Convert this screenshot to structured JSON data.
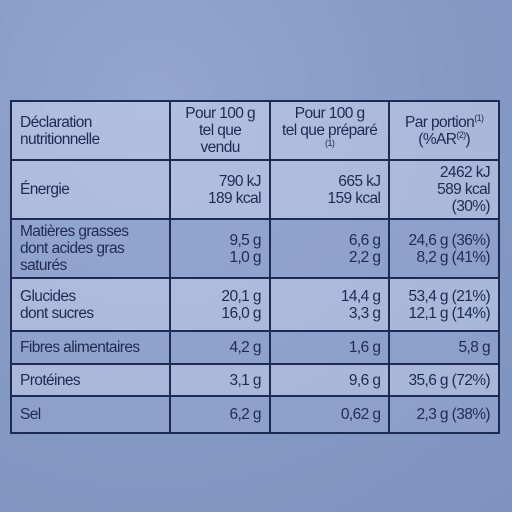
{
  "header": {
    "col1": [
      "Déclaration",
      "nutritionnelle"
    ],
    "col2": [
      "Pour 100 g",
      "tel que vendu"
    ],
    "col3": {
      "line1": "Pour 100 g",
      "line2": "tel que préparé",
      "note": "(1)"
    },
    "col4": {
      "line1": "Par portion",
      "note1": "(1)",
      "line2_open": "(%AR",
      "note2": "(2)",
      "line2_close": ")"
    }
  },
  "rows": [
    {
      "label": [
        "Énergie"
      ],
      "sold": [
        "790 kJ",
        "189 kcal"
      ],
      "prepared": [
        "665 kJ",
        "159 kcal"
      ],
      "portion": [
        "2462 kJ",
        "589 kcal (30%)"
      ]
    },
    {
      "label": [
        "Matières grasses",
        "dont acides gras saturés"
      ],
      "sold": [
        "9,5 g",
        "1,0 g"
      ],
      "prepared": [
        "6,6 g",
        "2,2 g"
      ],
      "portion": [
        "24,6 g (36%)",
        "8,2 g (41%)"
      ]
    },
    {
      "label": [
        "Glucides",
        "dont sucres"
      ],
      "sold": [
        "20,1 g",
        "16,0 g"
      ],
      "prepared": [
        "14,4 g",
        "3,3 g"
      ],
      "portion": [
        "53,4 g (21%)",
        "12,1 g (14%)"
      ]
    },
    {
      "label": [
        "Fibres alimentaires"
      ],
      "sold": [
        "4,2 g"
      ],
      "prepared": [
        "1,6 g"
      ],
      "portion": [
        "5,8 g"
      ]
    },
    {
      "label": [
        "Protéines"
      ],
      "sold": [
        "3,1 g"
      ],
      "prepared": [
        "9,6 g"
      ],
      "portion": [
        "35,6 g (72%)"
      ]
    },
    {
      "label": [
        "Sel"
      ],
      "sold": [
        "6,2 g"
      ],
      "prepared": [
        "0,62 g"
      ],
      "portion": [
        "2,3 g (38%)"
      ]
    }
  ]
}
